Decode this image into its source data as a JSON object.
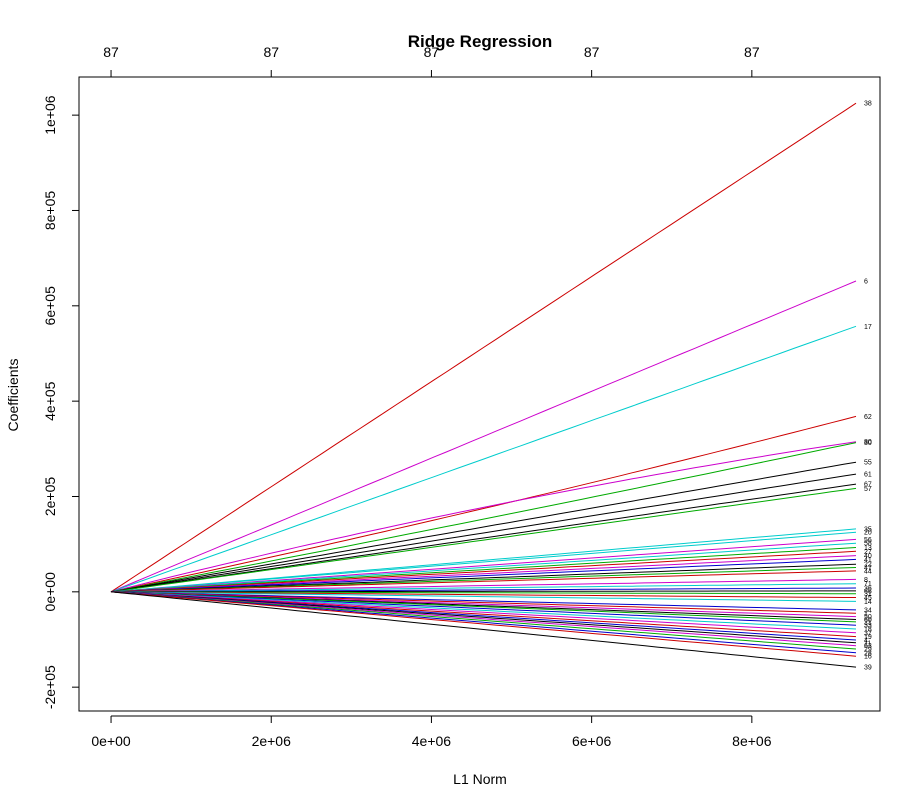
{
  "chart_data": {
    "type": "line",
    "title": "Ridge Regression",
    "xlabel": "L1 Norm",
    "ylabel": "Coefficients",
    "xlim": [
      -400000,
      9600000
    ],
    "ylim": [
      -250000,
      1080000
    ],
    "x_ticks": [
      0,
      2000000,
      4000000,
      6000000,
      8000000
    ],
    "x_tick_labels": [
      "0e+00",
      "2e+06",
      "4e+06",
      "6e+06",
      "8e+06"
    ],
    "y_ticks": [
      -200000,
      0,
      200000,
      400000,
      600000,
      800000,
      1000000
    ],
    "y_tick_labels": [
      "-2e+05",
      "0e+00",
      "2e+05",
      "4e+05",
      "6e+05",
      "8e+05",
      "1e+06"
    ],
    "top_ticks": [
      0,
      2000000,
      4000000,
      6000000,
      8000000
    ],
    "top_tick_labels": [
      "87",
      "87",
      "87",
      "87",
      "87"
    ],
    "x_end": 9300000,
    "grid": false,
    "legend": "none",
    "series": [
      {
        "name": "38",
        "end": 1025000,
        "curve": 0.0,
        "color": "#cc0000"
      },
      {
        "name": "6",
        "end": 652000,
        "curve": 0.0,
        "color": "#cc00cc"
      },
      {
        "name": "17",
        "end": 557000,
        "curve": 0.0,
        "color": "#00cccc"
      },
      {
        "name": "62",
        "end": 368000,
        "curve": -0.1,
        "color": "#cc0000"
      },
      {
        "name": "80",
        "end": 315000,
        "curve": 0.25,
        "color": "#cc00cc"
      },
      {
        "name": "30",
        "end": 313000,
        "curve": -0.05,
        "color": "#00aa00"
      },
      {
        "name": "55",
        "end": 272000,
        "curve": 0.0,
        "color": "#000000"
      },
      {
        "name": "61",
        "end": 247000,
        "curve": 0.0,
        "color": "#000000"
      },
      {
        "name": "67",
        "end": 226000,
        "curve": 0.0,
        "color": "#000000"
      },
      {
        "name": "57",
        "end": 217000,
        "curve": 0.0,
        "color": "#00aa00"
      },
      {
        "name": "35",
        "end": 132000,
        "curve": 0.0,
        "color": "#00cccc"
      },
      {
        "name": "20",
        "end": 125000,
        "curve": 0.0,
        "color": "#00cccc"
      },
      {
        "name": "56",
        "end": 110000,
        "curve": 0.0,
        "color": "#cc00cc"
      },
      {
        "name": "58",
        "end": 102000,
        "curve": 0.0,
        "color": "#00cccc"
      },
      {
        "name": "13",
        "end": 93000,
        "curve": 0.0,
        "color": "#00aa00"
      },
      {
        "name": "27",
        "end": 85000,
        "curve": 0.0,
        "color": "#cc0000"
      },
      {
        "name": "40",
        "end": 76000,
        "curve": 0.0,
        "color": "#cc00cc"
      },
      {
        "name": "41",
        "end": 68000,
        "curve": 0.0,
        "color": "#0000cc"
      },
      {
        "name": "22",
        "end": 58000,
        "curve": 0.0,
        "color": "#000000"
      },
      {
        "name": "47",
        "end": 51000,
        "curve": 0.0,
        "color": "#00aa00"
      },
      {
        "name": "44",
        "end": 44000,
        "curve": 0.0,
        "color": "#cc0000"
      },
      {
        "name": "8",
        "end": 26000,
        "curve": 0.0,
        "color": "#cc00cc"
      },
      {
        "name": "71",
        "end": 17000,
        "curve": 0.0,
        "color": "#00cccc"
      },
      {
        "name": "36",
        "end": 8000,
        "curve": 0.0,
        "color": "#0000cc"
      },
      {
        "name": "66",
        "end": 2000,
        "curve": 0.0,
        "color": "#000000"
      },
      {
        "name": "31",
        "end": -4000,
        "curve": 0.0,
        "color": "#00aa00"
      },
      {
        "name": "45",
        "end": -12000,
        "curve": 0.0,
        "color": "#cc0000"
      },
      {
        "name": "14",
        "end": -20000,
        "curve": 0.0,
        "color": "#00cccc"
      },
      {
        "name": "34",
        "end": -38000,
        "curve": 0.0,
        "color": "#0000cc"
      },
      {
        "name": "1",
        "end": -45000,
        "curve": 0.0,
        "color": "#cc0000"
      },
      {
        "name": "50",
        "end": -52000,
        "curve": 0.0,
        "color": "#cc00cc"
      },
      {
        "name": "60",
        "end": -58000,
        "curve": 0.0,
        "color": "#000000"
      },
      {
        "name": "21",
        "end": -63000,
        "curve": 0.0,
        "color": "#00aa00"
      },
      {
        "name": "33",
        "end": -70000,
        "curve": 0.0,
        "color": "#0000cc"
      },
      {
        "name": "18",
        "end": -78000,
        "curve": 0.0,
        "color": "#00cccc"
      },
      {
        "name": "37",
        "end": -86000,
        "curve": 0.0,
        "color": "#cc00cc"
      },
      {
        "name": "19",
        "end": -94000,
        "curve": 0.0,
        "color": "#cc0000"
      },
      {
        "name": "4",
        "end": -101000,
        "curve": 0.0,
        "color": "#0000cc"
      },
      {
        "name": "11",
        "end": -107000,
        "curve": 0.0,
        "color": "#000000"
      },
      {
        "name": "63",
        "end": -113000,
        "curve": 0.0,
        "color": "#cc00cc"
      },
      {
        "name": "29",
        "end": -120000,
        "curve": 0.0,
        "color": "#00aa00"
      },
      {
        "name": "28",
        "end": -128000,
        "curve": 0.0,
        "color": "#0000cc"
      },
      {
        "name": "16",
        "end": -135000,
        "curve": 0.0,
        "color": "#cc0000"
      },
      {
        "name": "39",
        "end": -158000,
        "curve": 0.0,
        "color": "#000000"
      }
    ]
  }
}
